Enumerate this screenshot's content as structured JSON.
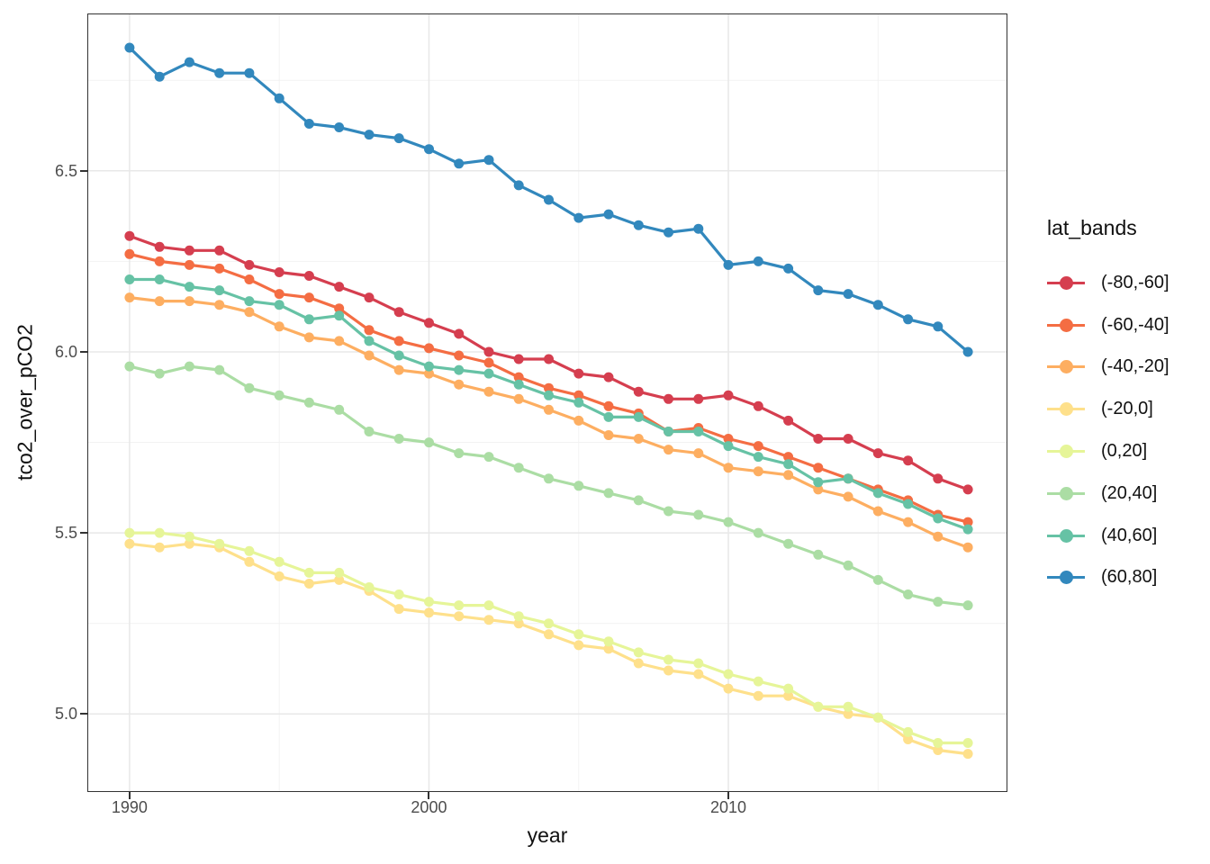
{
  "chart_data": {
    "type": "line",
    "title": "",
    "xlabel": "year",
    "ylabel": "tco2_over_pCO2",
    "legend_title": "lat_bands",
    "legend_position": "right",
    "grid": true,
    "background": "#ffffff",
    "panel_border_color": "#333333",
    "major_grid_color": "#e8e8e8",
    "minor_grid_color": "#f2f2f2",
    "tick_label_color": "#4d4d4d",
    "xlim": [
      1988.62,
      2019.29
    ],
    "ylim": [
      4.787,
      6.932
    ],
    "x_major_ticks": [
      1990,
      2000,
      2010
    ],
    "x_tick_labels": [
      "1990",
      "2000",
      "2010"
    ],
    "x_minor_gridlines": [
      1995,
      2005,
      2015
    ],
    "y_major_ticks": [
      5.0,
      5.5,
      6.0,
      6.5
    ],
    "y_tick_labels": [
      "5.0",
      "5.5",
      "6.0",
      "6.5"
    ],
    "y_minor_gridlines": [
      5.25,
      5.75,
      6.25,
      6.75
    ],
    "x": [
      1990,
      1991,
      1992,
      1993,
      1994,
      1995,
      1996,
      1997,
      1998,
      1999,
      2000,
      2001,
      2002,
      2003,
      2004,
      2005,
      2006,
      2007,
      2008,
      2009,
      2010,
      2011,
      2012,
      2013,
      2014,
      2015,
      2016,
      2017,
      2018
    ],
    "series": [
      {
        "name": "(-80,-60]",
        "color": "#d53e4f",
        "values": [
          6.32,
          6.29,
          6.28,
          6.28,
          6.24,
          6.22,
          6.21,
          6.18,
          6.15,
          6.11,
          6.08,
          6.05,
          6.0,
          5.98,
          5.98,
          5.94,
          5.93,
          5.89,
          5.87,
          5.87,
          5.88,
          5.85,
          5.81,
          5.76,
          5.76,
          5.72,
          5.7,
          5.65,
          5.62
        ]
      },
      {
        "name": "(-60,-40]",
        "color": "#f46d43",
        "values": [
          6.27,
          6.25,
          6.24,
          6.23,
          6.2,
          6.16,
          6.15,
          6.12,
          6.06,
          6.03,
          6.01,
          5.99,
          5.97,
          5.93,
          5.9,
          5.88,
          5.85,
          5.83,
          5.78,
          5.79,
          5.76,
          5.74,
          5.71,
          5.68,
          5.65,
          5.62,
          5.59,
          5.55,
          5.53
        ]
      },
      {
        "name": "(-40,-20]",
        "color": "#fdae61",
        "values": [
          6.15,
          6.14,
          6.14,
          6.13,
          6.11,
          6.07,
          6.04,
          6.03,
          5.99,
          5.95,
          5.94,
          5.91,
          5.89,
          5.87,
          5.84,
          5.81,
          5.77,
          5.76,
          5.73,
          5.72,
          5.68,
          5.67,
          5.66,
          5.62,
          5.6,
          5.56,
          5.53,
          5.49,
          5.46
        ]
      },
      {
        "name": "(-20,0]",
        "color": "#fee08b",
        "values": [
          5.47,
          5.46,
          5.47,
          5.46,
          5.42,
          5.38,
          5.36,
          5.37,
          5.34,
          5.29,
          5.28,
          5.27,
          5.26,
          5.25,
          5.22,
          5.19,
          5.18,
          5.14,
          5.12,
          5.11,
          5.07,
          5.05,
          5.05,
          5.02,
          5.0,
          4.99,
          4.93,
          4.9,
          4.89
        ]
      },
      {
        "name": "(0,20]",
        "color": "#e6f598",
        "values": [
          5.5,
          5.5,
          5.49,
          5.47,
          5.45,
          5.42,
          5.39,
          5.39,
          5.35,
          5.33,
          5.31,
          5.3,
          5.3,
          5.27,
          5.25,
          5.22,
          5.2,
          5.17,
          5.15,
          5.14,
          5.11,
          5.09,
          5.07,
          5.02,
          5.02,
          4.99,
          4.95,
          4.92,
          4.92
        ]
      },
      {
        "name": "(20,40]",
        "color": "#abdda4",
        "values": [
          5.96,
          5.94,
          5.96,
          5.95,
          5.9,
          5.88,
          5.86,
          5.84,
          5.78,
          5.76,
          5.75,
          5.72,
          5.71,
          5.68,
          5.65,
          5.63,
          5.61,
          5.59,
          5.56,
          5.55,
          5.53,
          5.5,
          5.47,
          5.44,
          5.41,
          5.37,
          5.33,
          5.31,
          5.3
        ]
      },
      {
        "name": "(40,60]",
        "color": "#66c2a5",
        "values": [
          6.2,
          6.2,
          6.18,
          6.17,
          6.14,
          6.13,
          6.09,
          6.1,
          6.03,
          5.99,
          5.96,
          5.95,
          5.94,
          5.91,
          5.88,
          5.86,
          5.82,
          5.82,
          5.78,
          5.78,
          5.74,
          5.71,
          5.69,
          5.64,
          5.65,
          5.61,
          5.58,
          5.54,
          5.51
        ]
      },
      {
        "name": "(60,80]",
        "color": "#3288bd",
        "values": [
          6.84,
          6.76,
          6.8,
          6.77,
          6.77,
          6.7,
          6.63,
          6.62,
          6.6,
          6.59,
          6.56,
          6.52,
          6.53,
          6.46,
          6.42,
          6.37,
          6.38,
          6.35,
          6.33,
          6.34,
          6.24,
          6.25,
          6.23,
          6.17,
          6.16,
          6.13,
          6.09,
          6.07,
          6.0
        ]
      }
    ]
  }
}
